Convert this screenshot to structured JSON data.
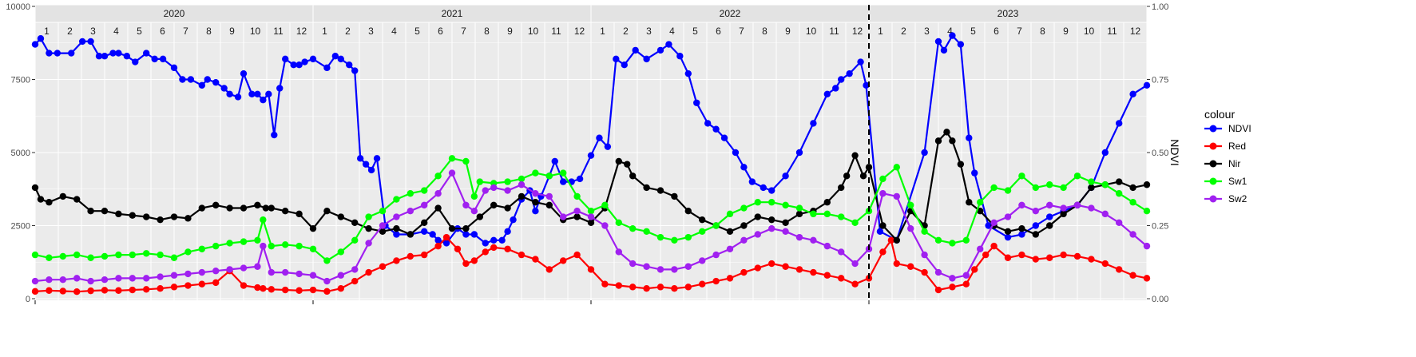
{
  "chart_data": {
    "type": "line",
    "y_left": {
      "range": [
        0,
        10000
      ],
      "ticks": [
        "0",
        "2500",
        "5000",
        "7500",
        "10000"
      ]
    },
    "y_right": {
      "label": "NDVI",
      "range": [
        0,
        1
      ],
      "ticks": [
        "0.00",
        "0.25",
        "0.50",
        "0.75",
        "1.00"
      ]
    },
    "x_range": [
      2020.0,
      2024.0
    ],
    "years": [
      "2020",
      "2021",
      "2022",
      "2023"
    ],
    "months": [
      "1",
      "2",
      "3",
      "4",
      "5",
      "6",
      "7",
      "8",
      "9",
      "10",
      "11",
      "12"
    ],
    "vline_x": 2023.0,
    "grid": true,
    "legend": {
      "title": "colour",
      "position": "right",
      "items": [
        {
          "name": "NDVI",
          "color": "#0000ff"
        },
        {
          "name": "Red",
          "color": "#ff0000"
        },
        {
          "name": "Nir",
          "color": "#000000"
        },
        {
          "name": "Sw1",
          "color": "#00ff00"
        },
        {
          "name": "Sw2",
          "color": "#a020f0"
        }
      ]
    },
    "series": [
      {
        "name": "NDVI",
        "color": "#0000ff",
        "axis": "right",
        "x": [
          2020.0,
          2020.02,
          2020.05,
          2020.08,
          2020.13,
          2020.17,
          2020.2,
          2020.23,
          2020.25,
          2020.28,
          2020.3,
          2020.33,
          2020.36,
          2020.4,
          2020.43,
          2020.46,
          2020.5,
          2020.53,
          2020.56,
          2020.6,
          2020.62,
          2020.65,
          2020.68,
          2020.7,
          2020.73,
          2020.75,
          2020.78,
          2020.8,
          2020.82,
          2020.84,
          2020.86,
          2020.88,
          2020.9,
          2020.93,
          2020.95,
          2020.97,
          2021.0,
          2021.05,
          2021.08,
          2021.1,
          2021.13,
          2021.15,
          2021.17,
          2021.19,
          2021.21,
          2021.23,
          2021.26,
          2021.3,
          2021.35,
          2021.4,
          2021.43,
          2021.45,
          2021.48,
          2021.52,
          2021.55,
          2021.58,
          2021.62,
          2021.65,
          2021.68,
          2021.7,
          2021.72,
          2021.75,
          2021.78,
          2021.8,
          2021.82,
          2021.85,
          2021.87,
          2021.9,
          2021.93,
          2021.96,
          2022.0,
          2022.03,
          2022.06,
          2022.09,
          2022.12,
          2022.16,
          2022.2,
          2022.25,
          2022.28,
          2022.32,
          2022.35,
          2022.38,
          2022.42,
          2022.45,
          2022.48,
          2022.52,
          2022.55,
          2022.58,
          2022.62,
          2022.65,
          2022.7,
          2022.75,
          2022.8,
          2022.85,
          2022.88,
          2022.9,
          2022.93,
          2022.97,
          2022.99,
          2023.04,
          2023.1,
          2023.2,
          2023.25,
          2023.27,
          2023.3,
          2023.33,
          2023.36,
          2023.38,
          2023.43,
          2023.5,
          2023.55,
          2023.6,
          2023.65,
          2023.7,
          2023.75,
          2023.8,
          2023.85,
          2023.9,
          2023.95,
          2024.0
        ],
        "y": [
          0.87,
          0.89,
          0.84,
          0.84,
          0.84,
          0.88,
          0.88,
          0.83,
          0.83,
          0.84,
          0.84,
          0.83,
          0.81,
          0.84,
          0.82,
          0.82,
          0.79,
          0.75,
          0.75,
          0.73,
          0.75,
          0.74,
          0.72,
          0.7,
          0.69,
          0.77,
          0.7,
          0.7,
          0.68,
          0.7,
          0.56,
          0.72,
          0.82,
          0.8,
          0.8,
          0.81,
          0.82,
          0.79,
          0.83,
          0.82,
          0.8,
          0.78,
          0.48,
          0.46,
          0.44,
          0.48,
          0.25,
          0.22,
          0.22,
          0.23,
          0.22,
          0.2,
          0.19,
          0.24,
          0.22,
          0.22,
          0.19,
          0.2,
          0.2,
          0.23,
          0.27,
          0.34,
          0.37,
          0.3,
          0.35,
          0.42,
          0.47,
          0.4,
          0.4,
          0.41,
          0.49,
          0.55,
          0.52,
          0.82,
          0.8,
          0.85,
          0.82,
          0.85,
          0.87,
          0.83,
          0.77,
          0.67,
          0.6,
          0.58,
          0.55,
          0.5,
          0.45,
          0.4,
          0.38,
          0.37,
          0.42,
          0.5,
          0.6,
          0.7,
          0.72,
          0.75,
          0.77,
          0.81,
          0.73,
          0.23,
          0.2,
          0.5,
          0.88,
          0.85,
          0.9,
          0.87,
          0.55,
          0.43,
          0.25,
          0.21,
          0.22,
          0.25,
          0.28,
          0.3,
          0.32,
          0.38,
          0.5,
          0.6,
          0.7,
          0.73
        ]
      },
      {
        "name": "Red",
        "color": "#ff0000",
        "axis": "left",
        "x": [
          2020.0,
          2020.05,
          2020.1,
          2020.15,
          2020.2,
          2020.25,
          2020.3,
          2020.35,
          2020.4,
          2020.45,
          2020.5,
          2020.55,
          2020.6,
          2020.65,
          2020.7,
          2020.75,
          2020.8,
          2020.82,
          2020.85,
          2020.9,
          2020.95,
          2021.0,
          2021.05,
          2021.1,
          2021.15,
          2021.2,
          2021.25,
          2021.3,
          2021.35,
          2021.4,
          2021.45,
          2021.48,
          2021.52,
          2021.55,
          2021.58,
          2021.62,
          2021.65,
          2021.7,
          2021.75,
          2021.8,
          2021.85,
          2021.9,
          2021.95,
          2022.0,
          2022.05,
          2022.1,
          2022.15,
          2022.2,
          2022.25,
          2022.3,
          2022.35,
          2022.4,
          2022.45,
          2022.5,
          2022.55,
          2022.6,
          2022.65,
          2022.7,
          2022.75,
          2022.8,
          2022.85,
          2022.9,
          2022.95,
          2023.0,
          2023.05,
          2023.08,
          2023.1,
          2023.15,
          2023.2,
          2023.25,
          2023.3,
          2023.35,
          2023.38,
          2023.42,
          2023.45,
          2023.5,
          2023.55,
          2023.6,
          2023.65,
          2023.7,
          2023.75,
          2023.8,
          2023.85,
          2023.9,
          2023.95,
          2024.0
        ],
        "y": [
          250,
          280,
          260,
          240,
          270,
          290,
          280,
          300,
          320,
          350,
          400,
          450,
          500,
          550,
          950,
          450,
          380,
          350,
          320,
          300,
          280,
          300,
          250,
          350,
          600,
          900,
          1100,
          1300,
          1450,
          1500,
          1800,
          2100,
          1700,
          1200,
          1300,
          1600,
          1750,
          1700,
          1500,
          1350,
          1000,
          1300,
          1500,
          1000,
          500,
          450,
          400,
          350,
          400,
          350,
          400,
          500,
          600,
          700,
          900,
          1050,
          1200,
          1100,
          1000,
          900,
          800,
          700,
          500,
          700,
          1600,
          2000,
          1200,
          1100,
          900,
          300,
          400,
          500,
          1000,
          1500,
          1800,
          1400,
          1500,
          1350,
          1400,
          1500,
          1450,
          1350,
          1200,
          1000,
          800,
          700
        ]
      },
      {
        "name": "Nir",
        "color": "#000000",
        "axis": "left",
        "x": [
          2020.0,
          2020.02,
          2020.05,
          2020.1,
          2020.15,
          2020.2,
          2020.25,
          2020.3,
          2020.35,
          2020.4,
          2020.45,
          2020.5,
          2020.55,
          2020.6,
          2020.65,
          2020.7,
          2020.75,
          2020.8,
          2020.83,
          2020.85,
          2020.9,
          2020.95,
          2021.0,
          2021.05,
          2021.1,
          2021.15,
          2021.2,
          2021.25,
          2021.3,
          2021.35,
          2021.4,
          2021.45,
          2021.5,
          2021.55,
          2021.6,
          2021.65,
          2021.7,
          2021.75,
          2021.8,
          2021.85,
          2021.9,
          2021.95,
          2022.0,
          2022.05,
          2022.1,
          2022.13,
          2022.15,
          2022.2,
          2022.25,
          2022.3,
          2022.35,
          2022.4,
          2022.45,
          2022.5,
          2022.55,
          2022.6,
          2022.65,
          2022.7,
          2022.75,
          2022.8,
          2022.85,
          2022.9,
          2022.92,
          2022.95,
          2022.98,
          2023.0,
          2023.05,
          2023.1,
          2023.15,
          2023.2,
          2023.25,
          2023.28,
          2023.3,
          2023.33,
          2023.36,
          2023.4,
          2023.45,
          2023.5,
          2023.55,
          2023.6,
          2023.65,
          2023.7,
          2023.75,
          2023.8,
          2023.85,
          2023.9,
          2023.95,
          2024.0
        ],
        "y": [
          3800,
          3400,
          3300,
          3500,
          3400,
          3000,
          3000,
          2900,
          2850,
          2800,
          2700,
          2800,
          2750,
          3100,
          3200,
          3100,
          3100,
          3200,
          3100,
          3100,
          3000,
          2900,
          2400,
          3000,
          2800,
          2600,
          2400,
          2300,
          2400,
          2200,
          2600,
          3100,
          2400,
          2400,
          2800,
          3200,
          3100,
          3500,
          3300,
          3200,
          2700,
          2800,
          2600,
          3100,
          4700,
          4600,
          4200,
          3800,
          3700,
          3500,
          3000,
          2700,
          2500,
          2300,
          2500,
          2800,
          2700,
          2600,
          2900,
          3000,
          3300,
          3800,
          4200,
          4900,
          4200,
          4500,
          2500,
          2000,
          3000,
          2500,
          5400,
          5700,
          5400,
          4600,
          3300,
          3000,
          2500,
          2300,
          2400,
          2200,
          2500,
          2900,
          3200,
          3800,
          3900,
          4000,
          3800,
          3900
        ]
      },
      {
        "name": "Sw1",
        "color": "#00ff00",
        "axis": "left",
        "x": [
          2020.0,
          2020.05,
          2020.1,
          2020.15,
          2020.2,
          2020.25,
          2020.3,
          2020.35,
          2020.4,
          2020.45,
          2020.5,
          2020.55,
          2020.6,
          2020.65,
          2020.7,
          2020.75,
          2020.8,
          2020.82,
          2020.85,
          2020.9,
          2020.95,
          2021.0,
          2021.05,
          2021.1,
          2021.15,
          2021.2,
          2021.25,
          2021.3,
          2021.35,
          2021.4,
          2021.45,
          2021.5,
          2021.55,
          2021.58,
          2021.6,
          2021.65,
          2021.7,
          2021.75,
          2021.8,
          2021.85,
          2021.9,
          2021.95,
          2022.0,
          2022.05,
          2022.1,
          2022.15,
          2022.2,
          2022.25,
          2022.3,
          2022.35,
          2022.4,
          2022.45,
          2022.5,
          2022.55,
          2022.6,
          2022.65,
          2022.7,
          2022.75,
          2022.8,
          2022.85,
          2022.9,
          2022.95,
          2023.0,
          2023.05,
          2023.1,
          2023.15,
          2023.2,
          2023.25,
          2023.3,
          2023.35,
          2023.4,
          2023.45,
          2023.5,
          2023.55,
          2023.6,
          2023.65,
          2023.7,
          2023.75,
          2023.8,
          2023.85,
          2023.9,
          2023.95,
          2024.0
        ],
        "y": [
          1500,
          1400,
          1450,
          1500,
          1400,
          1450,
          1500,
          1500,
          1550,
          1500,
          1400,
          1600,
          1700,
          1800,
          1900,
          1950,
          2000,
          2700,
          1800,
          1850,
          1800,
          1700,
          1300,
          1600,
          2000,
          2800,
          3000,
          3400,
          3600,
          3700,
          4200,
          4800,
          4700,
          3500,
          4000,
          3950,
          4000,
          4100,
          4300,
          4200,
          4300,
          3500,
          3000,
          3200,
          2600,
          2400,
          2300,
          2100,
          2000,
          2100,
          2300,
          2500,
          2900,
          3100,
          3300,
          3300,
          3200,
          3100,
          2900,
          2900,
          2800,
          2600,
          3000,
          4100,
          4500,
          3200,
          2300,
          2000,
          1900,
          2000,
          3300,
          3800,
          3700,
          4200,
          3800,
          3900,
          3800,
          4200,
          4000,
          3900,
          3600,
          3300,
          3000
        ]
      },
      {
        "name": "Sw2",
        "color": "#a020f0",
        "axis": "left",
        "x": [
          2020.0,
          2020.05,
          2020.1,
          2020.15,
          2020.2,
          2020.25,
          2020.3,
          2020.35,
          2020.4,
          2020.45,
          2020.5,
          2020.55,
          2020.6,
          2020.65,
          2020.7,
          2020.75,
          2020.8,
          2020.82,
          2020.85,
          2020.9,
          2020.95,
          2021.0,
          2021.05,
          2021.1,
          2021.15,
          2021.2,
          2021.25,
          2021.3,
          2021.35,
          2021.4,
          2021.45,
          2021.5,
          2021.55,
          2021.58,
          2021.62,
          2021.65,
          2021.7,
          2021.75,
          2021.8,
          2021.85,
          2021.9,
          2021.95,
          2022.0,
          2022.05,
          2022.1,
          2022.15,
          2022.2,
          2022.25,
          2022.3,
          2022.35,
          2022.4,
          2022.45,
          2022.5,
          2022.55,
          2022.6,
          2022.65,
          2022.7,
          2022.75,
          2022.8,
          2022.85,
          2022.9,
          2022.95,
          2023.0,
          2023.05,
          2023.1,
          2023.15,
          2023.2,
          2023.25,
          2023.3,
          2023.35,
          2023.4,
          2023.45,
          2023.5,
          2023.55,
          2023.6,
          2023.65,
          2023.7,
          2023.75,
          2023.8,
          2023.85,
          2023.9,
          2023.95,
          2024.0
        ],
        "y": [
          600,
          650,
          650,
          700,
          600,
          650,
          700,
          700,
          700,
          750,
          800,
          850,
          900,
          950,
          1000,
          1050,
          1100,
          1800,
          900,
          900,
          850,
          800,
          600,
          800,
          1000,
          1900,
          2500,
          2800,
          3000,
          3200,
          3600,
          4300,
          3200,
          3000,
          3700,
          3800,
          3700,
          3900,
          3600,
          3500,
          2800,
          3000,
          2800,
          2500,
          1600,
          1200,
          1100,
          1000,
          1000,
          1100,
          1300,
          1500,
          1700,
          2000,
          2200,
          2400,
          2300,
          2100,
          2000,
          1800,
          1600,
          1200,
          1700,
          3600,
          3500,
          2400,
          1500,
          900,
          700,
          800,
          1700,
          2600,
          2800,
          3200,
          3000,
          3200,
          3100,
          3200,
          3100,
          2900,
          2600,
          2200,
          1800
        ]
      }
    ]
  }
}
